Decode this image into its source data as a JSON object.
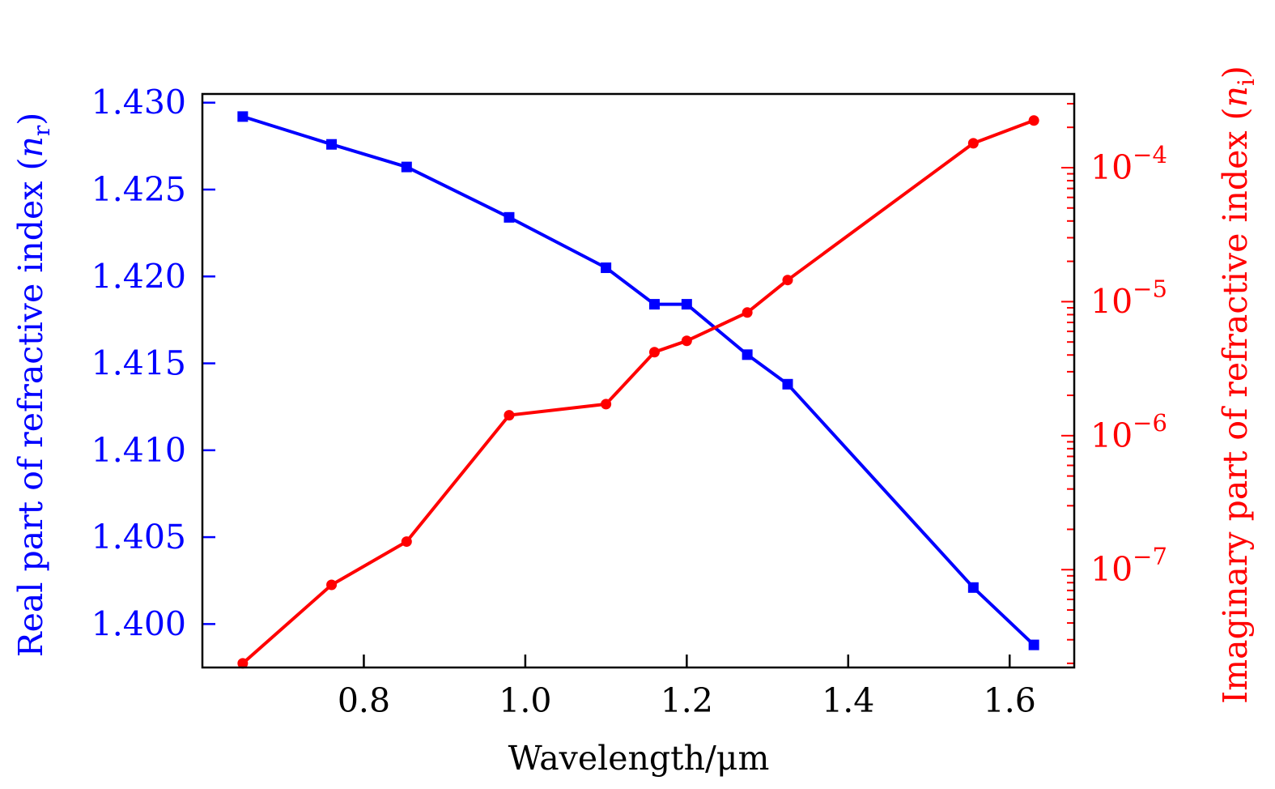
{
  "chart_data": {
    "type": "line",
    "title": "",
    "xlabel": "Wavelength/μm",
    "ylabel_left": {
      "text": "Real part of refractive index",
      "symbol": "n",
      "subscript": "r"
    },
    "ylabel_right": {
      "text": "Imaginary part of refractive index",
      "symbol": "n",
      "subscript": "i"
    },
    "xlim": [
      0.6,
      1.68
    ],
    "ylim_left": [
      1.3975,
      1.4305
    ],
    "ylim_right_log10": [
      -7.73,
      -3.45
    ],
    "x_ticks": [
      {
        "value": 0.8,
        "label": "0.8"
      },
      {
        "value": 1.0,
        "label": "1.0"
      },
      {
        "value": 1.2,
        "label": "1.2"
      },
      {
        "value": 1.4,
        "label": "1.4"
      },
      {
        "value": 1.6,
        "label": "1.6"
      }
    ],
    "y_left_ticks": [
      {
        "value": 1.4,
        "label": "1.400"
      },
      {
        "value": 1.405,
        "label": "1.405"
      },
      {
        "value": 1.41,
        "label": "1.410"
      },
      {
        "value": 1.415,
        "label": "1.415"
      },
      {
        "value": 1.42,
        "label": "1.420"
      },
      {
        "value": 1.425,
        "label": "1.425"
      },
      {
        "value": 1.43,
        "label": "1.430"
      }
    ],
    "y_right_ticks": [
      {
        "exponent": -7,
        "base": "10",
        "sup": "−7"
      },
      {
        "exponent": -6,
        "base": "10",
        "sup": "−6"
      },
      {
        "exponent": -5,
        "base": "10",
        "sup": "−5"
      },
      {
        "exponent": -4,
        "base": "10",
        "sup": "−4"
      }
    ],
    "series": [
      {
        "name": "Real part (n_r)",
        "axis": "left",
        "color": "#0000ff",
        "marker": "square",
        "x": [
          0.65,
          0.76,
          0.853,
          0.98,
          1.1,
          1.16,
          1.2,
          1.275,
          1.325,
          1.555,
          1.63
        ],
        "values": [
          1.4292,
          1.4276,
          1.4263,
          1.4234,
          1.4205,
          1.4184,
          1.4184,
          1.4155,
          1.4138,
          1.4021,
          1.3988
        ]
      },
      {
        "name": "Imaginary part (n_i)",
        "axis": "right",
        "scale": "log",
        "color": "#ff0000",
        "marker": "circle",
        "x": [
          0.65,
          0.76,
          0.853,
          0.98,
          1.1,
          1.16,
          1.2,
          1.275,
          1.325,
          1.555,
          1.63
        ],
        "values": [
          2e-08,
          7.7e-08,
          1.62e-07,
          1.42e-06,
          1.72e-06,
          4.2e-06,
          5.1e-06,
          8.3e-06,
          1.45e-05,
          0.000152,
          0.000225
        ]
      }
    ]
  }
}
